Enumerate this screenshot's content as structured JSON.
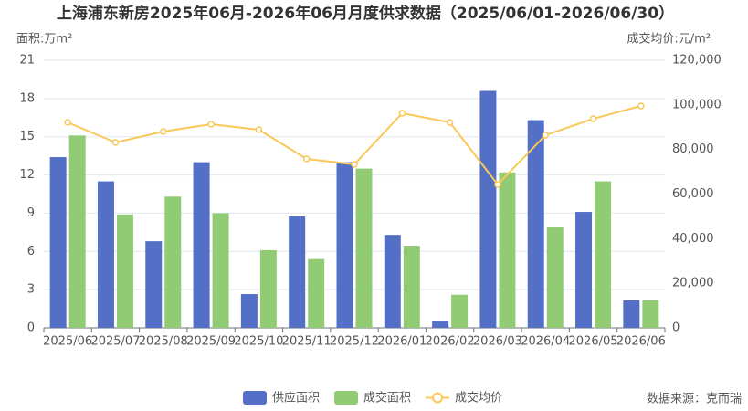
{
  "chart_data": {
    "type": "bar-line",
    "title": "上海浦东新房2025年06月-2026年06月月度供求数据（2025/06/01-2026/06/30）",
    "y_label": "面积:万m²",
    "y2_label": "成交均价:元/m²",
    "source": "数据来源：克而瑞",
    "categories": [
      "2025/06",
      "2025/07",
      "2025/08",
      "2025/09",
      "2025/10",
      "2025/11",
      "2025/12",
      "2026/01",
      "2026/02",
      "2026/03",
      "2026/04",
      "2026/05",
      "2026/06"
    ],
    "series": [
      {
        "name": "供应面积",
        "type": "bar",
        "color": "#5470c6",
        "values": [
          13.4,
          11.5,
          6.8,
          13.0,
          2.65,
          8.75,
          13.0,
          7.3,
          0.5,
          18.6,
          16.3,
          9.1,
          2.15
        ]
      },
      {
        "name": "成交面积",
        "type": "bar",
        "color": "#91cc75",
        "values": [
          15.1,
          8.9,
          10.3,
          9.0,
          6.1,
          5.4,
          12.5,
          6.45,
          2.6,
          12.2,
          7.95,
          11.5,
          2.15
        ]
      },
      {
        "name": "成交均价",
        "type": "line",
        "axis": "y2",
        "color": "#fac858",
        "values": [
          92150,
          83140,
          88050,
          91330,
          88870,
          75770,
          73310,
          96250,
          92150,
          64300,
          86420,
          93790,
          99520
        ]
      }
    ],
    "ylim": [
      0,
      21
    ],
    "yticks": [
      0,
      3,
      6,
      9,
      12,
      15,
      18,
      21
    ],
    "y2lim": [
      0,
      120000
    ],
    "y2ticks": [
      0,
      {
        "value": 20000,
        "label": "20,000"
      },
      {
        "value": 40000,
        "label": "40,000"
      },
      {
        "value": 60000,
        "label": "60,000"
      },
      {
        "value": 80000,
        "label": "80,000"
      },
      {
        "value": 100000,
        "label": "100,000"
      },
      {
        "value": 120000,
        "label": "120,000"
      }
    ],
    "grid": true
  }
}
